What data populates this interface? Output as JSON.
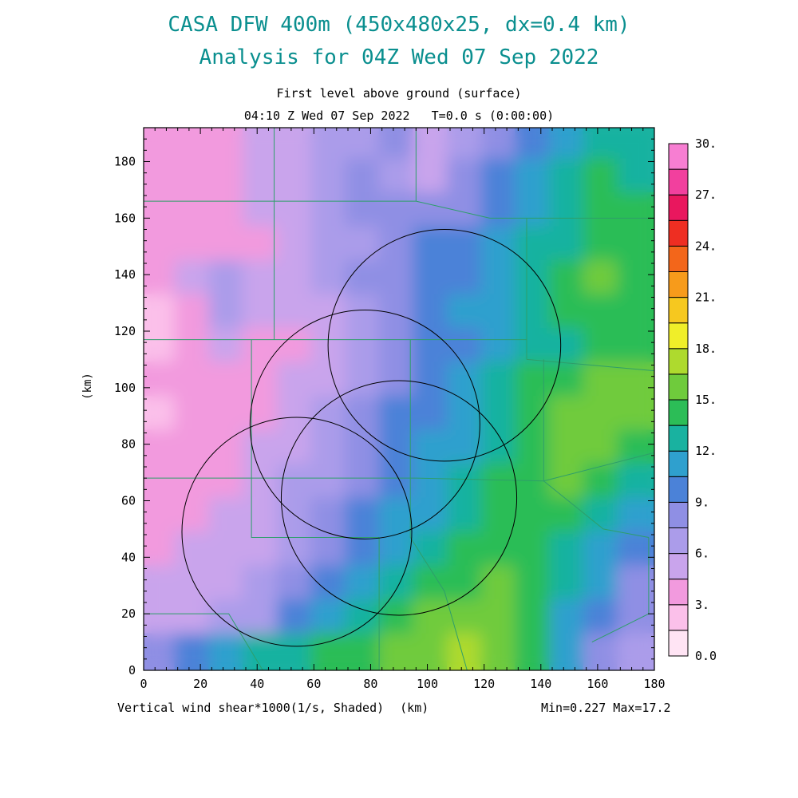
{
  "title": {
    "line1": "CASA DFW 400m (450x480x25, dx=0.4 km)",
    "line2": "Analysis for 04Z Wed 07 Sep 2022",
    "color": "#0a8f8f"
  },
  "header": {
    "level_label": "First level above ground (surface)",
    "time_label": "04:10 Z Wed 07 Sep 2022   T=0.0 s (0:00:00)"
  },
  "footer": {
    "field_label": "Vertical wind shear*1000(1/s, Shaded)",
    "x_unit": "(km)",
    "minmax": "Min=0.227 Max=17.2"
  },
  "axes": {
    "y_unit": "(km)",
    "x_ticks": [
      0,
      20,
      40,
      60,
      80,
      100,
      120,
      140,
      160,
      180
    ],
    "y_ticks": [
      0,
      20,
      40,
      60,
      80,
      100,
      120,
      140,
      160,
      180
    ],
    "x_range": [
      0,
      180
    ],
    "y_range": [
      0,
      192
    ]
  },
  "colorbar": {
    "tick_labels": [
      "0.0",
      "3.",
      "6.",
      "9.",
      "12.",
      "15.",
      "18.",
      "21.",
      "24.",
      "27.",
      "30."
    ],
    "levels_min": 0,
    "levels_max": 30,
    "level_step": 1.5,
    "colors": [
      "#ffe4f4",
      "#fbc0ea",
      "#f29ade",
      "#c9a4ec",
      "#ab9cea",
      "#8f8fe4",
      "#4b82d8",
      "#2fa0ce",
      "#19b2a0",
      "#2cbd57",
      "#6fcb3c",
      "#aeda2e",
      "#f0ee29",
      "#f6c81f",
      "#f79b1b",
      "#f3661a",
      "#ee2e22",
      "#e9175e",
      "#f2409e",
      "#f77ed2"
    ],
    "line_color": "#2e9e6a"
  },
  "chart_data": {
    "type": "heatmap",
    "title": "Vertical wind shear*1000 (1/s), first level above ground (surface)",
    "xlabel": "(km)",
    "ylabel": "(km)",
    "x_range": [
      0,
      180
    ],
    "y_range": [
      0,
      192
    ],
    "value_min": 0.227,
    "value_max": 17.2,
    "x": [
      6,
      18,
      30,
      42,
      54,
      66,
      78,
      90,
      102,
      114,
      126,
      138,
      150,
      162,
      174
    ],
    "y": [
      186,
      174,
      162,
      150,
      138,
      126,
      114,
      102,
      90,
      78,
      66,
      54,
      42,
      30,
      18,
      6
    ],
    "values": [
      [
        3.5,
        3.5,
        4,
        5,
        5.5,
        6.5,
        7,
        7.5,
        4.5,
        6,
        8,
        9.5,
        11,
        12.5,
        13
      ],
      [
        3.5,
        3.5,
        4,
        4.5,
        5.5,
        7,
        8,
        7,
        5,
        7.5,
        9,
        10.5,
        12,
        13.5,
        12.5
      ],
      [
        3.5,
        3.5,
        4,
        4.5,
        5,
        6.5,
        7.5,
        8,
        7.5,
        8.5,
        10,
        11,
        12.5,
        14,
        13.5
      ],
      [
        3.5,
        3.5,
        3.5,
        4,
        5,
        6,
        7,
        8.5,
        9,
        9.5,
        10.5,
        12,
        13,
        14.5,
        14
      ],
      [
        4,
        5.5,
        6.5,
        5,
        4.5,
        6,
        7.5,
        8,
        9,
        10,
        11,
        12,
        13.5,
        15,
        14.5
      ],
      [
        1.5,
        4,
        6,
        5,
        4.5,
        5.5,
        7,
        8.5,
        9.5,
        10.5,
        11,
        12.5,
        13.5,
        14.5,
        14
      ],
      [
        2,
        3.5,
        4.5,
        4,
        4,
        5,
        6.5,
        8,
        9,
        10,
        11.5,
        12,
        13,
        14,
        14.5
      ],
      [
        3,
        3.5,
        4,
        4,
        4.5,
        5.5,
        7,
        8.5,
        9.5,
        10.5,
        12,
        13.5,
        14.5,
        15,
        15
      ],
      [
        1.5,
        3,
        3.5,
        4,
        5,
        6,
        7.5,
        9,
        10,
        11,
        12.5,
        14,
        15,
        15.5,
        15
      ],
      [
        3,
        3.5,
        3.5,
        4.5,
        5.5,
        6.5,
        8,
        9.5,
        10.5,
        11.5,
        13,
        14.5,
        15,
        15.5,
        14
      ],
      [
        3.5,
        3.5,
        4,
        5,
        6,
        7,
        8.5,
        10,
        11,
        12,
        13.5,
        14.5,
        15,
        14.5,
        12.5
      ],
      [
        4,
        4,
        4.5,
        5.5,
        6.5,
        8,
        9.5,
        10.5,
        11,
        12.5,
        14,
        14.5,
        14,
        13,
        11.5
      ],
      [
        4,
        4.5,
        5,
        5.5,
        7,
        8.5,
        10,
        11,
        12,
        13.5,
        14.5,
        14,
        13,
        11.5,
        10
      ],
      [
        4.5,
        5,
        5.5,
        6,
        7.5,
        9.5,
        11.5,
        13,
        14,
        14.5,
        15,
        14,
        12,
        10.5,
        8.5
      ],
      [
        5,
        5.5,
        6,
        7,
        9,
        11,
        13,
        14.5,
        15,
        15.5,
        16,
        14.5,
        11.5,
        9,
        7.5
      ],
      [
        8,
        10,
        11,
        12,
        12.5,
        13.5,
        14.5,
        15,
        15.5,
        16.5,
        16,
        13.5,
        10.5,
        8.5,
        7
      ]
    ],
    "radar_circles": [
      {
        "cx": 106,
        "cy": 115,
        "r": 41
      },
      {
        "cx": 78,
        "cy": 87,
        "r": 40.5
      },
      {
        "cx": 54,
        "cy": 49,
        "r": 40.5
      },
      {
        "cx": 90,
        "cy": 61,
        "r": 41.5
      }
    ],
    "county_lines": [
      [
        [
          0,
          166
        ],
        [
          96,
          166
        ]
      ],
      [
        [
          46,
          192
        ],
        [
          46,
          117
        ]
      ],
      [
        [
          96,
          192
        ],
        [
          96,
          166
        ]
      ],
      [
        [
          96,
          166
        ],
        [
          122,
          160
        ],
        [
          180,
          160
        ]
      ],
      [
        [
          0,
          117
        ],
        [
          135,
          117
        ]
      ],
      [
        [
          135,
          160
        ],
        [
          135,
          110
        ]
      ],
      [
        [
          135,
          110
        ],
        [
          180,
          106
        ]
      ],
      [
        [
          0,
          68
        ],
        [
          96,
          68
        ],
        [
          141,
          67
        ]
      ],
      [
        [
          38,
          117
        ],
        [
          38,
          68
        ]
      ],
      [
        [
          94,
          117
        ],
        [
          94,
          47
        ]
      ],
      [
        [
          38,
          68
        ],
        [
          38,
          47
        ],
        [
          83,
          47
        ]
      ],
      [
        [
          83,
          47
        ],
        [
          83,
          0
        ]
      ],
      [
        [
          94,
          47
        ],
        [
          106,
          28
        ],
        [
          114,
          0
        ]
      ],
      [
        [
          0,
          20
        ],
        [
          30,
          20
        ],
        [
          42,
          0
        ]
      ],
      [
        [
          141,
          110
        ],
        [
          141,
          67
        ]
      ],
      [
        [
          180,
          77
        ],
        [
          141,
          67
        ]
      ],
      [
        [
          141,
          67
        ],
        [
          162,
          50
        ],
        [
          178,
          47
        ]
      ],
      [
        [
          178,
          47
        ],
        [
          178,
          20
        ],
        [
          158,
          10
        ]
      ]
    ]
  }
}
